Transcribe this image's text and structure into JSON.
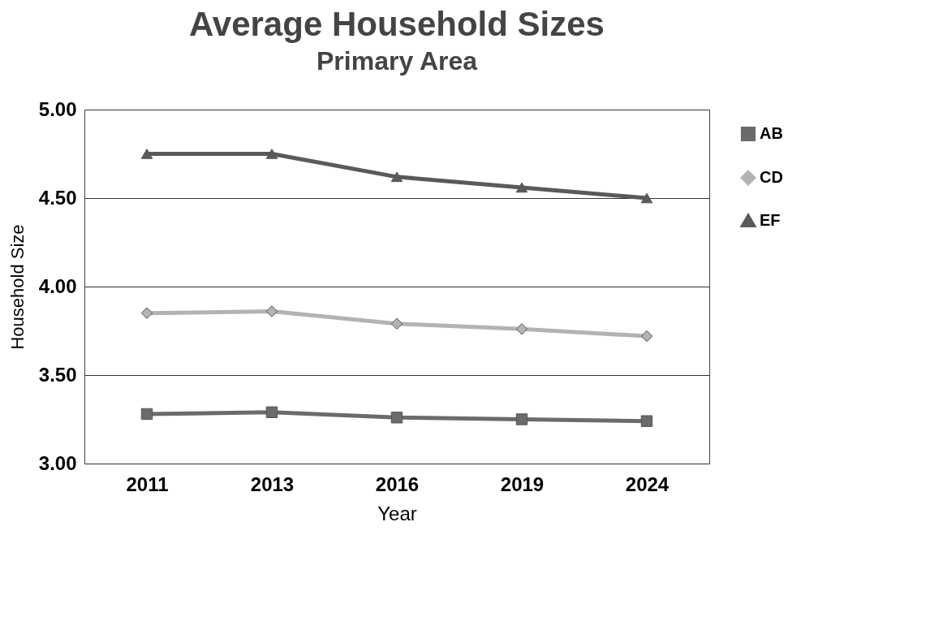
{
  "chart_data": {
    "type": "line",
    "title": "Average Household Sizes",
    "subtitle": "Primary Area",
    "xlabel": "Year",
    "ylabel": "Household Size",
    "categories": [
      "2011",
      "2013",
      "2016",
      "2019",
      "2024"
    ],
    "series": [
      {
        "name": "AB",
        "color": "#6b6b6b",
        "marker": "square",
        "values": [
          3.28,
          3.29,
          3.26,
          3.25,
          3.24
        ]
      },
      {
        "name": "CD",
        "color": "#b3b3b3",
        "marker": "diamond",
        "values": [
          3.85,
          3.86,
          3.79,
          3.76,
          3.72
        ]
      },
      {
        "name": "EF",
        "color": "#5a5a5a",
        "marker": "triangle",
        "values": [
          4.75,
          4.75,
          4.62,
          4.56,
          4.5
        ]
      }
    ],
    "ylim": [
      3,
      5
    ],
    "yticks": [
      {
        "value": 3,
        "label": "3.00"
      },
      {
        "value": 3.5,
        "label": "3.50"
      },
      {
        "value": 4,
        "label": "4.00"
      },
      {
        "value": 4.5,
        "label": "4.50"
      },
      {
        "value": 5,
        "label": "5.00"
      }
    ],
    "grid": "y",
    "legend": "right",
    "line_style": "solid"
  }
}
